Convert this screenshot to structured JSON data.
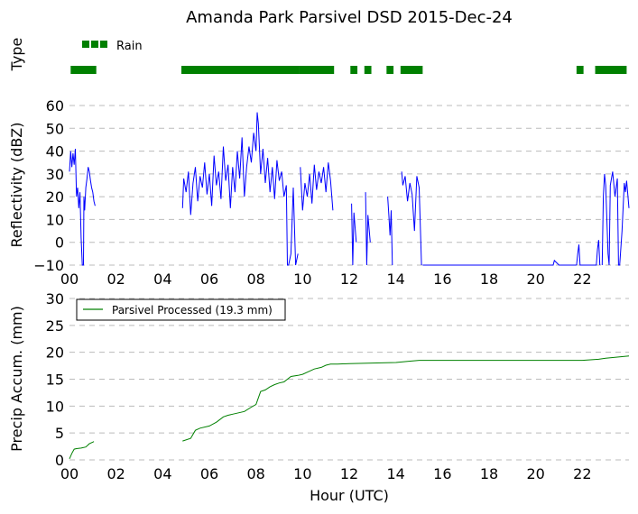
{
  "chart_data": [
    {
      "type": "bar",
      "title": "Amanda Park Parsivel DSD 2015-Dec-24",
      "ylabel": "Type",
      "legend": {
        "label": "Rain",
        "color": "#008000",
        "placement": "top-left"
      },
      "xlim": [
        0,
        24
      ],
      "rain_intervals": [
        [
          0.05,
          1.15
        ],
        [
          4.8,
          9.85
        ],
        [
          9.85,
          11.35
        ],
        [
          12.05,
          12.35
        ],
        [
          12.65,
          12.95
        ],
        [
          13.6,
          13.9
        ],
        [
          14.2,
          15.15
        ],
        [
          21.75,
          22.05
        ],
        [
          22.55,
          23.9
        ]
      ]
    },
    {
      "type": "line",
      "ylabel": "Reflectivity (dBZ)",
      "ylim": [
        -10,
        60
      ],
      "yticks": [
        -10,
        0,
        10,
        20,
        30,
        40,
        50,
        60
      ],
      "xlim": [
        0,
        24
      ],
      "xticks": [
        "00",
        "02",
        "04",
        "06",
        "08",
        "10",
        "12",
        "14",
        "16",
        "18",
        "20",
        "22"
      ],
      "grid": "horizontal-dashed",
      "color": "#0000ff",
      "series": [
        {
          "x": [
            0.0,
            0.05,
            0.1,
            0.15,
            0.2,
            0.25,
            0.3,
            0.35,
            0.4,
            0.45,
            0.5,
            0.55,
            0.6,
            0.62,
            0.65,
            0.7,
            0.75,
            0.8,
            0.85,
            0.9,
            0.95,
            1.0,
            1.05,
            1.1
          ],
          "y": [
            31,
            40,
            33,
            39,
            34,
            41,
            20,
            24,
            15,
            22,
            2,
            -10,
            -10,
            20,
            14,
            24,
            28,
            33,
            31,
            27,
            24,
            22,
            18,
            16
          ]
        },
        {
          "x": [
            4.85,
            4.9,
            5.0,
            5.1,
            5.2,
            5.3,
            5.4,
            5.5,
            5.6,
            5.7,
            5.8,
            5.9,
            6.0,
            6.1,
            6.2,
            6.3,
            6.4,
            6.5,
            6.6,
            6.7,
            6.8,
            6.9,
            7.0,
            7.1,
            7.2,
            7.3,
            7.4,
            7.5,
            7.6,
            7.7,
            7.8,
            7.9,
            8.0,
            8.05,
            8.1,
            8.2,
            8.3,
            8.4,
            8.5,
            8.6,
            8.7,
            8.8,
            8.9,
            9.0,
            9.1,
            9.2,
            9.3,
            9.35,
            9.4,
            9.5,
            9.6,
            9.7,
            9.8
          ],
          "y": [
            15,
            28,
            22,
            31,
            12,
            26,
            33,
            18,
            29,
            24,
            35,
            21,
            30,
            16,
            38,
            25,
            31,
            19,
            42,
            27,
            34,
            15,
            33,
            22,
            40,
            28,
            46,
            20,
            33,
            42,
            35,
            48,
            40,
            57,
            52,
            30,
            41,
            26,
            37,
            22,
            33,
            19,
            36,
            27,
            31,
            20,
            25,
            -10,
            -10,
            -5,
            24,
            -10,
            -5
          ]
        },
        {
          "x": [
            9.9,
            10.0,
            10.1,
            10.2,
            10.3,
            10.4,
            10.5,
            10.6,
            10.7,
            10.8,
            10.9,
            11.0,
            11.1,
            11.2,
            11.3
          ],
          "y": [
            33,
            14,
            26,
            20,
            30,
            17,
            34,
            23,
            31,
            26,
            33,
            22,
            35,
            27,
            14
          ]
        },
        {
          "x": [
            12.1,
            12.15,
            12.2,
            12.3
          ],
          "y": [
            17,
            -10,
            13,
            0
          ]
        },
        {
          "x": [
            12.7,
            12.75,
            12.8,
            12.9
          ],
          "y": [
            22,
            -10,
            12,
            0
          ]
        },
        {
          "x": [
            13.65,
            13.7,
            13.75,
            13.8,
            13.85
          ],
          "y": [
            20,
            12,
            3,
            14,
            -10
          ]
        },
        {
          "x": [
            14.25,
            14.3,
            14.4,
            14.5,
            14.6,
            14.7,
            14.8,
            14.9,
            15.0,
            15.1
          ],
          "y": [
            31,
            25,
            29,
            18,
            26,
            21,
            5,
            29,
            24,
            -10
          ]
        },
        {
          "x": [
            15.15,
            18.0,
            20.5,
            20.75,
            20.8,
            21.0,
            21.75
          ],
          "y": [
            -10,
            -10,
            -10,
            -10,
            -8,
            -10,
            -10
          ]
        },
        {
          "x": [
            21.75,
            21.8,
            21.85,
            21.9,
            22.0,
            22.6,
            22.65,
            22.7,
            22.75
          ],
          "y": [
            -10,
            -5,
            -1,
            -10,
            -10,
            -10,
            -3,
            1,
            -10
          ]
        },
        {
          "x": [
            22.85,
            22.9,
            22.95,
            23.0,
            23.1,
            23.15,
            23.2,
            23.3,
            23.4,
            23.5,
            23.55,
            23.6,
            23.7,
            23.8,
            23.85,
            23.9,
            24.0
          ],
          "y": [
            -10,
            20,
            30,
            25,
            -5,
            -10,
            25,
            31,
            20,
            28,
            -10,
            -10,
            5,
            26,
            22,
            27,
            15
          ]
        }
      ]
    },
    {
      "type": "line",
      "ylabel": "Precip Accum. (mm)",
      "xlabel": "Hour (UTC)",
      "ylim": [
        0,
        30
      ],
      "yticks": [
        0,
        5,
        10,
        15,
        20,
        25,
        30
      ],
      "xlim": [
        0,
        24
      ],
      "xticks": [
        "00",
        "02",
        "04",
        "06",
        "08",
        "10",
        "12",
        "14",
        "16",
        "18",
        "20",
        "22"
      ],
      "grid": "horizontal-dashed",
      "legend": {
        "label": "Parsivel Processed (19.3 mm)",
        "color": "#008000",
        "placement": "top-left"
      },
      "series": [
        {
          "x": [
            0.0,
            0.1,
            0.2,
            0.3,
            0.5,
            0.7,
            0.85,
            1.0,
            1.05
          ],
          "y": [
            0.2,
            1.2,
            2.0,
            2.1,
            2.2,
            2.4,
            3.0,
            3.3,
            3.4
          ]
        },
        {
          "x": [
            4.85,
            5.2,
            5.4,
            5.6,
            6.0,
            6.3,
            6.6,
            6.8,
            7.0,
            7.5,
            7.8,
            8.0,
            8.2,
            8.4,
            8.6,
            8.8,
            9.0,
            9.2,
            9.5,
            9.8,
            10.0,
            10.3,
            10.5,
            10.8,
            11.0,
            11.2,
            11.5,
            12.0,
            13.0,
            14.0,
            14.5,
            15.0,
            16.0,
            18.0,
            20.0,
            22.0,
            22.7,
            23.0,
            23.5,
            24.0
          ],
          "y": [
            3.5,
            4.0,
            5.5,
            5.9,
            6.3,
            7.0,
            8.0,
            8.3,
            8.5,
            9.0,
            9.8,
            10.3,
            12.7,
            13.0,
            13.6,
            14.0,
            14.3,
            14.5,
            15.5,
            15.7,
            15.9,
            16.5,
            16.9,
            17.2,
            17.6,
            17.8,
            17.8,
            17.9,
            18.0,
            18.1,
            18.3,
            18.5,
            18.5,
            18.5,
            18.5,
            18.5,
            18.7,
            18.9,
            19.1,
            19.3
          ]
        }
      ]
    }
  ]
}
